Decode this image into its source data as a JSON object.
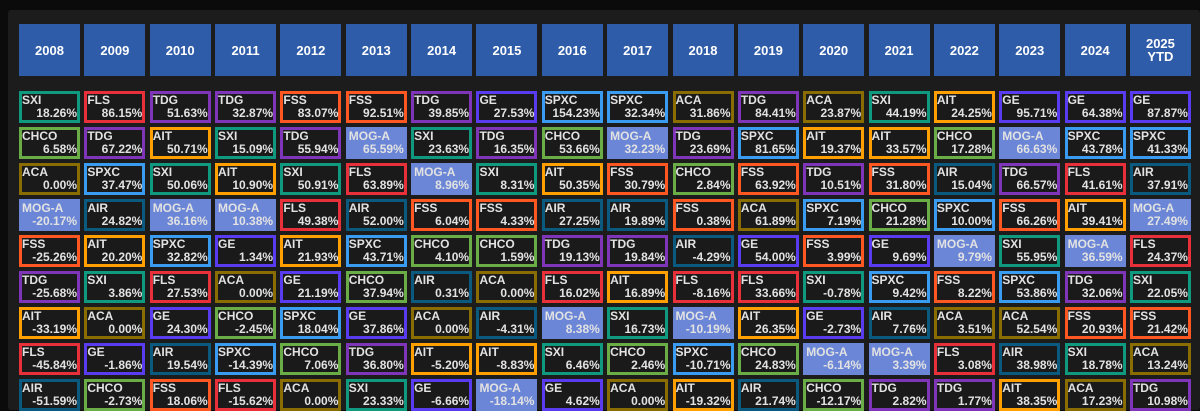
{
  "chart_data": {
    "type": "table",
    "title": "",
    "colors": {
      "SXI": "#0f9a7f",
      "FLS": "#e8303a",
      "TDG": "#7e35b8",
      "FSS": "#ff5722",
      "CHCO": "#6aac45",
      "AIT": "#ff9f00",
      "ACA": "#8a6d00",
      "SPXC": "#3a9cf0",
      "MOG-A": "#6b86d6",
      "AIR": "#0a5a80",
      "GE": "#5a3cf0"
    },
    "header_color": "#2f5ca8",
    "filled_tickers": [
      "MOG-A"
    ],
    "columns": [
      {
        "year": "2008",
        "entries": [
          [
            "SXI",
            "18.26%"
          ],
          [
            "CHCO",
            "6.58%"
          ],
          [
            "ACA",
            "0.00%"
          ],
          [
            "MOG-A",
            "-20.17%"
          ],
          [
            "FSS",
            "-25.26%"
          ],
          [
            "TDG",
            "-25.68%"
          ],
          [
            "AIT",
            "-33.19%"
          ],
          [
            "FLS",
            "-45.84%"
          ],
          [
            "AIR",
            "-51.59%"
          ]
        ]
      },
      {
        "year": "2009",
        "entries": [
          [
            "FLS",
            "86.15%"
          ],
          [
            "TDG",
            "67.22%"
          ],
          [
            "SPXC",
            "37.47%"
          ],
          [
            "AIR",
            "24.82%"
          ],
          [
            "AIT",
            "20.20%"
          ],
          [
            "SXI",
            "3.86%"
          ],
          [
            "ACA",
            "0.00%"
          ],
          [
            "GE",
            "-1.86%"
          ],
          [
            "CHCO",
            "-2.73%"
          ]
        ]
      },
      {
        "year": "2010",
        "entries": [
          [
            "TDG",
            "51.63%"
          ],
          [
            "AIT",
            "50.71%"
          ],
          [
            "SXI",
            "50.06%"
          ],
          [
            "MOG-A",
            "36.16%"
          ],
          [
            "SPXC",
            "32.82%"
          ],
          [
            "FLS",
            "27.53%"
          ],
          [
            "GE",
            "24.30%"
          ],
          [
            "AIR",
            "19.54%"
          ],
          [
            "FSS",
            "18.06%"
          ]
        ]
      },
      {
        "year": "2011",
        "entries": [
          [
            "TDG",
            "32.87%"
          ],
          [
            "SXI",
            "15.09%"
          ],
          [
            "AIT",
            "10.90%"
          ],
          [
            "MOG-A",
            "10.38%"
          ],
          [
            "GE",
            "1.34%"
          ],
          [
            "ACA",
            "0.00%"
          ],
          [
            "CHCO",
            "-2.45%"
          ],
          [
            "SPXC",
            "-14.39%"
          ],
          [
            "FLS",
            "-15.62%"
          ]
        ]
      },
      {
        "year": "2012",
        "entries": [
          [
            "FSS",
            "83.07%"
          ],
          [
            "TDG",
            "55.94%"
          ],
          [
            "SXI",
            "50.91%"
          ],
          [
            "FLS",
            "49.38%"
          ],
          [
            "AIT",
            "21.93%"
          ],
          [
            "GE",
            "21.19%"
          ],
          [
            "SPXC",
            "18.04%"
          ],
          [
            "CHCO",
            "7.06%"
          ],
          [
            "ACA",
            "0.00%"
          ]
        ]
      },
      {
        "year": "2013",
        "entries": [
          [
            "FSS",
            "92.51%"
          ],
          [
            "MOG-A",
            "65.59%"
          ],
          [
            "FLS",
            "63.89%"
          ],
          [
            "AIR",
            "52.00%"
          ],
          [
            "SPXC",
            "43.71%"
          ],
          [
            "CHCO",
            "37.94%"
          ],
          [
            "GE",
            "37.86%"
          ],
          [
            "TDG",
            "36.80%"
          ],
          [
            "SXI",
            "23.33%"
          ]
        ]
      },
      {
        "year": "2014",
        "entries": [
          [
            "TDG",
            "39.85%"
          ],
          [
            "SXI",
            "23.63%"
          ],
          [
            "MOG-A",
            "8.96%"
          ],
          [
            "FSS",
            "6.04%"
          ],
          [
            "CHCO",
            "4.10%"
          ],
          [
            "AIR",
            "0.31%"
          ],
          [
            "ACA",
            "0.00%"
          ],
          [
            "AIT",
            "-5.20%"
          ],
          [
            "GE",
            "-6.66%"
          ]
        ]
      },
      {
        "year": "2015",
        "entries": [
          [
            "GE",
            "27.53%"
          ],
          [
            "TDG",
            "16.35%"
          ],
          [
            "SXI",
            "8.31%"
          ],
          [
            "FSS",
            "4.33%"
          ],
          [
            "CHCO",
            "1.59%"
          ],
          [
            "ACA",
            "0.00%"
          ],
          [
            "AIR",
            "-4.31%"
          ],
          [
            "AIT",
            "-8.83%"
          ],
          [
            "MOG-A",
            "-18.14%"
          ]
        ]
      },
      {
        "year": "2016",
        "entries": [
          [
            "SPXC",
            "154.23%"
          ],
          [
            "CHCO",
            "53.66%"
          ],
          [
            "AIT",
            "50.35%"
          ],
          [
            "AIR",
            "27.25%"
          ],
          [
            "TDG",
            "19.13%"
          ],
          [
            "FLS",
            "16.02%"
          ],
          [
            "MOG-A",
            "8.38%"
          ],
          [
            "SXI",
            "6.46%"
          ],
          [
            "GE",
            "4.62%"
          ]
        ]
      },
      {
        "year": "2017",
        "entries": [
          [
            "SPXC",
            "32.34%"
          ],
          [
            "MOG-A",
            "32.23%"
          ],
          [
            "FSS",
            "30.79%"
          ],
          [
            "AIR",
            "19.89%"
          ],
          [
            "TDG",
            "19.84%"
          ],
          [
            "AIT",
            "16.89%"
          ],
          [
            "SXI",
            "16.73%"
          ],
          [
            "CHCO",
            "2.46%"
          ],
          [
            "ACA",
            "0.00%"
          ]
        ]
      },
      {
        "year": "2018",
        "entries": [
          [
            "ACA",
            "31.86%"
          ],
          [
            "TDG",
            "23.69%"
          ],
          [
            "CHCO",
            "2.84%"
          ],
          [
            "FSS",
            "0.38%"
          ],
          [
            "AIR",
            "-4.29%"
          ],
          [
            "FLS",
            "-8.16%"
          ],
          [
            "MOG-A",
            "-10.19%"
          ],
          [
            "SPXC",
            "-10.71%"
          ],
          [
            "AIT",
            "-19.32%"
          ]
        ]
      },
      {
        "year": "2019",
        "entries": [
          [
            "TDG",
            "84.41%"
          ],
          [
            "SPXC",
            "81.65%"
          ],
          [
            "FSS",
            "63.92%"
          ],
          [
            "ACA",
            "61.89%"
          ],
          [
            "GE",
            "54.00%"
          ],
          [
            "FLS",
            "33.66%"
          ],
          [
            "AIT",
            "26.35%"
          ],
          [
            "CHCO",
            "24.83%"
          ],
          [
            "AIR",
            "21.74%"
          ]
        ]
      },
      {
        "year": "2020",
        "entries": [
          [
            "ACA",
            "23.87%"
          ],
          [
            "AIT",
            "19.37%"
          ],
          [
            "TDG",
            "10.51%"
          ],
          [
            "SPXC",
            "7.19%"
          ],
          [
            "FSS",
            "3.99%"
          ],
          [
            "SXI",
            "-0.78%"
          ],
          [
            "GE",
            "-2.73%"
          ],
          [
            "MOG-A",
            "-6.14%"
          ],
          [
            "CHCO",
            "-12.17%"
          ]
        ]
      },
      {
        "year": "2021",
        "entries": [
          [
            "SXI",
            "44.19%"
          ],
          [
            "AIT",
            "33.57%"
          ],
          [
            "FSS",
            "31.80%"
          ],
          [
            "CHCO",
            "21.28%"
          ],
          [
            "GE",
            "9.69%"
          ],
          [
            "SPXC",
            "9.42%"
          ],
          [
            "AIR",
            "7.76%"
          ],
          [
            "MOG-A",
            "3.39%"
          ],
          [
            "TDG",
            "2.82%"
          ]
        ]
      },
      {
        "year": "2022",
        "entries": [
          [
            "AIT",
            "24.25%"
          ],
          [
            "CHCO",
            "17.28%"
          ],
          [
            "AIR",
            "15.04%"
          ],
          [
            "SPXC",
            "10.00%"
          ],
          [
            "MOG-A",
            "9.79%"
          ],
          [
            "FSS",
            "8.22%"
          ],
          [
            "ACA",
            "3.51%"
          ],
          [
            "FLS",
            "3.08%"
          ],
          [
            "TDG",
            "1.77%"
          ]
        ]
      },
      {
        "year": "2023",
        "entries": [
          [
            "GE",
            "95.71%"
          ],
          [
            "MOG-A",
            "66.63%"
          ],
          [
            "TDG",
            "66.57%"
          ],
          [
            "FSS",
            "66.26%"
          ],
          [
            "SXI",
            "55.95%"
          ],
          [
            "SPXC",
            "53.86%"
          ],
          [
            "ACA",
            "52.54%"
          ],
          [
            "AIR",
            "38.98%"
          ],
          [
            "AIT",
            "38.35%"
          ]
        ]
      },
      {
        "year": "2024",
        "entries": [
          [
            "GE",
            "64.38%"
          ],
          [
            "SPXC",
            "43.78%"
          ],
          [
            "FLS",
            "41.61%"
          ],
          [
            "AIT",
            "39.41%"
          ],
          [
            "MOG-A",
            "36.59%"
          ],
          [
            "TDG",
            "32.06%"
          ],
          [
            "FSS",
            "20.93%"
          ],
          [
            "SXI",
            "18.78%"
          ],
          [
            "ACA",
            "17.23%"
          ]
        ]
      },
      {
        "year": "2025\nYTD",
        "entries": [
          [
            "GE",
            "87.87%"
          ],
          [
            "SPXC",
            "41.33%"
          ],
          [
            "AIR",
            "37.91%"
          ],
          [
            "MOG-A",
            "27.49%"
          ],
          [
            "FLS",
            "24.37%"
          ],
          [
            "SXI",
            "22.05%"
          ],
          [
            "FSS",
            "21.42%"
          ],
          [
            "ACA",
            "13.24%"
          ],
          [
            "TDG",
            "10.98%"
          ]
        ]
      }
    ]
  }
}
